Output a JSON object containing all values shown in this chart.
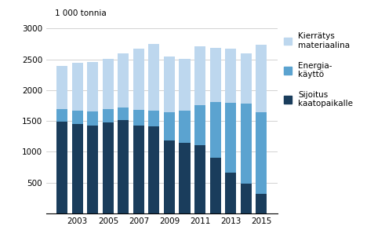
{
  "years": [
    2002,
    2003,
    2004,
    2005,
    2006,
    2007,
    2008,
    2009,
    2010,
    2011,
    2012,
    2013,
    2014,
    2015
  ],
  "sijoitus": [
    1490,
    1450,
    1430,
    1480,
    1510,
    1420,
    1410,
    1180,
    1140,
    1100,
    900,
    660,
    480,
    310
  ],
  "energia": [
    200,
    210,
    220,
    210,
    210,
    260,
    260,
    460,
    530,
    660,
    910,
    1130,
    1300,
    1330
  ],
  "kierratys": [
    700,
    780,
    800,
    820,
    870,
    990,
    1080,
    910,
    840,
    950,
    870,
    880,
    810,
    1090
  ],
  "color_sijoitus": "#1a3d5c",
  "color_energia": "#5ba3d0",
  "color_kierratys": "#bdd7ee",
  "ylabel": "1 000 tonnia",
  "ylim": [
    0,
    3000
  ],
  "yticks": [
    0,
    500,
    1000,
    1500,
    2000,
    2500,
    3000
  ],
  "legend_kierratys": "Kierrätys\nmateriaalina",
  "legend_energia": "Energia-\nkäyttö",
  "legend_sijoitus": "Sijoitus\nkaatopaikalle",
  "bg_color": "#ffffff",
  "grid_color": "#c0c0c0"
}
